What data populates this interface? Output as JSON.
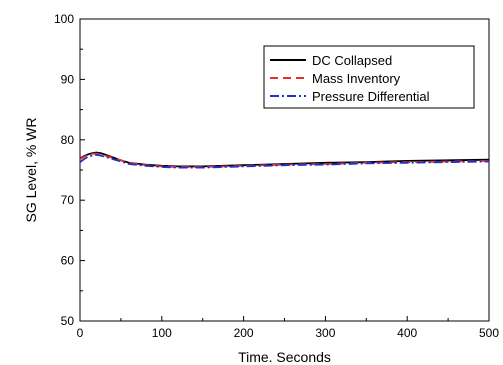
{
  "chart_data": {
    "type": "line",
    "title": "",
    "xlabel": "Time. Seconds",
    "ylabel": "SG Level, % WR",
    "xlim": [
      0,
      500
    ],
    "ylim": [
      50,
      100
    ],
    "xticks": [
      0,
      100,
      200,
      300,
      400,
      500
    ],
    "yticks": [
      50,
      60,
      70,
      80,
      90,
      100
    ],
    "grid": false,
    "legend_position": "top-right",
    "series": [
      {
        "name": "DC Collapsed",
        "color": "#000000",
        "style": "solid",
        "x": [
          0,
          5,
          10,
          15,
          20,
          25,
          30,
          40,
          50,
          60,
          80,
          100,
          120,
          150,
          200,
          250,
          300,
          350,
          400,
          450,
          500
        ],
        "y": [
          76.9,
          77.3,
          77.6,
          77.8,
          77.9,
          77.8,
          77.6,
          77.1,
          76.6,
          76.2,
          75.9,
          75.7,
          75.6,
          75.6,
          75.8,
          76.0,
          76.2,
          76.3,
          76.5,
          76.6,
          76.7
        ]
      },
      {
        "name": "Mass Inventory",
        "color": "#e03030",
        "style": "dashed",
        "x": [
          0,
          5,
          10,
          15,
          20,
          25,
          30,
          40,
          50,
          60,
          80,
          100,
          120,
          150,
          200,
          250,
          300,
          350,
          400,
          450,
          500
        ],
        "y": [
          76.8,
          77.2,
          77.5,
          77.7,
          77.7,
          77.6,
          77.4,
          77.0,
          76.6,
          76.2,
          75.8,
          75.6,
          75.5,
          75.5,
          75.7,
          75.9,
          76.0,
          76.2,
          76.3,
          76.4,
          76.5
        ]
      },
      {
        "name": "Pressure Differential",
        "color": "#2030d0",
        "style": "dashdot",
        "x": [
          0,
          5,
          10,
          15,
          20,
          25,
          30,
          40,
          50,
          60,
          80,
          100,
          120,
          150,
          200,
          250,
          300,
          350,
          400,
          450,
          500
        ],
        "y": [
          76.3,
          76.8,
          77.2,
          77.4,
          77.5,
          77.4,
          77.2,
          76.8,
          76.4,
          76.0,
          75.7,
          75.5,
          75.4,
          75.4,
          75.6,
          75.8,
          75.9,
          76.1,
          76.2,
          76.3,
          76.4
        ]
      }
    ]
  }
}
